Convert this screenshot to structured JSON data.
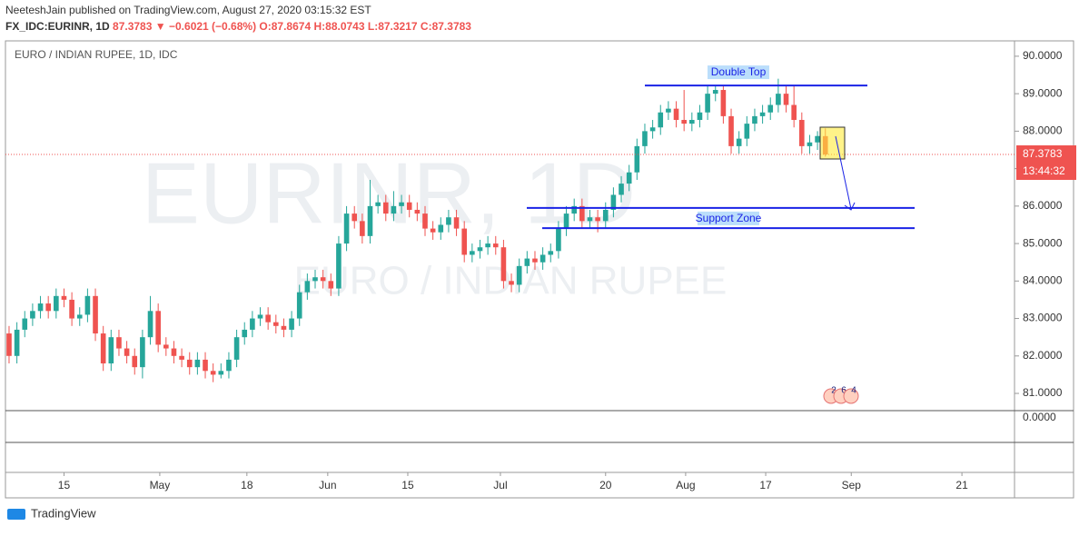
{
  "header": {
    "line1": "NeeteshJain published on TradingView.com, August 27, 2020 03:15:32 EST",
    "symbol": "FX_IDC:EURINR, 1D",
    "price": "87.3783",
    "arrow": "▼",
    "change": "−0.6021 (−0.68%)",
    "open": "O:87.8674",
    "high": "H:88.0743",
    "low": "L:87.3217",
    "close": "C:87.3783"
  },
  "footer": "TradingView",
  "chart_data": {
    "type": "candlestick",
    "title": "EURO / INDIAN RUPEE, 1D, IDC",
    "watermark": [
      "EURINR, 1D",
      "EURO / INDIAN RUPEE"
    ],
    "up_color": "#26a69a",
    "down_color": "#ef5350",
    "open": [
      82.6,
      82.0,
      82.7,
      83.0,
      83.2,
      83.4,
      83.2,
      83.6,
      83.5,
      83.0,
      83.1,
      83.6,
      82.6,
      81.8,
      82.5,
      82.2,
      82.0,
      81.7,
      82.5,
      83.2,
      82.3,
      82.2,
      82.0,
      81.9,
      81.7,
      81.9,
      81.6,
      81.5,
      81.6,
      81.9,
      82.5,
      82.7,
      83.0,
      83.1,
      82.9,
      82.8,
      82.7,
      83.0,
      83.7,
      84.0,
      84.1,
      84.0,
      83.8,
      85.0,
      85.8,
      85.6,
      85.2,
      86.0,
      86.1,
      85.8,
      86.0,
      86.1,
      85.9,
      85.8,
      85.4,
      85.3,
      85.5,
      85.7,
      85.4,
      84.7,
      84.8,
      84.9,
      85.0,
      84.9,
      84.0,
      83.9,
      84.4,
      84.6,
      84.5,
      84.7,
      84.8,
      85.4,
      85.8,
      86.0,
      85.6,
      85.7,
      85.6,
      85.9,
      86.3,
      86.6,
      86.9,
      87.6,
      88.0,
      88.1,
      88.5,
      88.6,
      88.3,
      88.2,
      88.3,
      88.5,
      89.0,
      89.1,
      88.4,
      87.6,
      87.8,
      88.2,
      88.4,
      88.5,
      88.7,
      89.0,
      88.7,
      88.3,
      87.6,
      87.7,
      87.8674
    ],
    "high": [
      82.8,
      82.9,
      83.2,
      83.4,
      83.6,
      83.6,
      83.8,
      83.8,
      83.7,
      83.3,
      83.8,
      83.8,
      82.8,
      82.7,
      82.7,
      82.4,
      82.2,
      82.7,
      83.6,
      83.4,
      82.5,
      82.4,
      82.2,
      82.1,
      82.1,
      82.1,
      81.8,
      81.8,
      82.1,
      82.7,
      82.9,
      83.2,
      83.3,
      83.3,
      83.1,
      83.0,
      83.2,
      83.9,
      84.2,
      84.3,
      84.3,
      84.2,
      85.2,
      86.0,
      86.0,
      85.8,
      86.7,
      86.3,
      86.3,
      86.4,
      86.3,
      86.3,
      86.1,
      86.0,
      85.6,
      85.7,
      85.9,
      85.9,
      85.6,
      85.0,
      85.1,
      85.2,
      85.2,
      85.1,
      84.2,
      84.6,
      84.8,
      84.8,
      84.9,
      85.0,
      85.6,
      86.0,
      86.2,
      86.2,
      85.9,
      85.9,
      86.1,
      86.5,
      86.8,
      87.1,
      87.8,
      88.2,
      88.3,
      88.7,
      88.8,
      88.8,
      89.1,
      88.5,
      88.7,
      89.2,
      89.2,
      89.2,
      88.6,
      88.0,
      88.4,
      88.6,
      88.7,
      88.9,
      89.4,
      89.2,
      89.2,
      88.5,
      87.9,
      88.0,
      88.0743
    ],
    "low": [
      81.8,
      81.8,
      82.5,
      82.8,
      83.0,
      83.0,
      83.0,
      83.3,
      82.8,
      82.8,
      82.9,
      82.4,
      81.6,
      81.6,
      82.0,
      81.8,
      81.5,
      81.4,
      82.3,
      82.1,
      82.0,
      81.8,
      81.7,
      81.5,
      81.5,
      81.4,
      81.3,
      81.4,
      81.4,
      81.7,
      82.3,
      82.5,
      82.8,
      82.7,
      82.6,
      82.5,
      82.5,
      82.8,
      83.5,
      83.8,
      83.8,
      83.6,
      83.6,
      84.8,
      85.4,
      85.0,
      85.0,
      85.8,
      85.6,
      85.6,
      85.8,
      85.7,
      85.6,
      85.2,
      85.1,
      85.1,
      85.3,
      85.2,
      84.5,
      84.5,
      84.6,
      84.7,
      84.7,
      83.8,
      83.7,
      83.7,
      84.2,
      84.3,
      84.3,
      84.5,
      84.6,
      85.2,
      85.6,
      85.4,
      85.4,
      85.3,
      85.4,
      85.7,
      86.1,
      86.4,
      86.7,
      87.4,
      87.8,
      87.9,
      88.3,
      88.1,
      88.0,
      88.0,
      88.1,
      88.3,
      88.8,
      88.2,
      87.4,
      87.4,
      87.6,
      88.0,
      88.2,
      88.3,
      88.5,
      88.5,
      88.1,
      87.4,
      87.4,
      87.5,
      87.3217
    ],
    "close": [
      82.0,
      82.7,
      83.0,
      83.2,
      83.4,
      83.2,
      83.6,
      83.5,
      83.0,
      83.1,
      83.6,
      82.6,
      81.8,
      82.5,
      82.2,
      82.0,
      81.7,
      82.5,
      83.2,
      82.3,
      82.2,
      82.0,
      81.9,
      81.7,
      81.9,
      81.6,
      81.5,
      81.6,
      81.9,
      82.5,
      82.7,
      83.0,
      83.1,
      82.9,
      82.8,
      82.7,
      83.0,
      83.7,
      84.0,
      84.1,
      84.0,
      83.8,
      85.0,
      85.8,
      85.6,
      85.2,
      86.0,
      86.1,
      85.8,
      86.0,
      86.1,
      85.9,
      85.8,
      85.4,
      85.3,
      85.5,
      85.7,
      85.4,
      84.7,
      84.8,
      84.9,
      85.0,
      84.9,
      84.0,
      83.9,
      84.4,
      84.6,
      84.5,
      84.7,
      84.8,
      85.4,
      85.8,
      86.0,
      85.6,
      85.7,
      85.6,
      85.9,
      86.3,
      86.6,
      86.9,
      87.6,
      88.0,
      88.1,
      88.5,
      88.6,
      88.3,
      88.2,
      88.3,
      88.5,
      89.0,
      89.1,
      88.4,
      87.6,
      87.8,
      88.2,
      88.4,
      88.5,
      88.7,
      89.0,
      88.7,
      88.3,
      87.6,
      87.7,
      87.87,
      87.3783
    ],
    "xlim": [
      -0.46,
      128.1
    ],
    "xticks": [
      {
        "value": 7,
        "label": "15"
      },
      {
        "value": 19.2,
        "label": "May"
      },
      {
        "value": 30.3,
        "label": "18"
      },
      {
        "value": 40.6,
        "label": "Jun"
      },
      {
        "value": 50.8,
        "label": "15"
      },
      {
        "value": 62.6,
        "label": "Jul"
      },
      {
        "value": 76,
        "label": "20"
      },
      {
        "value": 86.2,
        "label": "Aug"
      },
      {
        "value": 96.4,
        "label": "17"
      },
      {
        "value": 107.3,
        "label": "Sep"
      },
      {
        "value": 121.4,
        "label": "21"
      }
    ],
    "ylim": [
      80.54,
      90.41
    ],
    "yticks": [
      {
        "value": 81,
        "label": "81.0000"
      },
      {
        "value": 82,
        "label": "82.0000"
      },
      {
        "value": 83,
        "label": "83.0000"
      },
      {
        "value": 84,
        "label": "84.0000"
      },
      {
        "value": 85,
        "label": "85.0000"
      },
      {
        "value": 86,
        "label": "86.0000"
      },
      {
        "value": 87,
        "label": "87.0000"
      },
      {
        "value": 88,
        "label": "88.0000"
      },
      {
        "value": 89,
        "label": "89.0000"
      },
      {
        "value": 90,
        "label": "90.0000"
      }
    ],
    "last_price": {
      "value": 87.3783,
      "label": "87.3783"
    },
    "countdown": "13:44:32",
    "annotations": [
      {
        "text": "Double Top",
        "levels": [
          89.22
        ]
      },
      {
        "text": "Support Zone",
        "levels": [
          85.95,
          85.41
        ]
      }
    ],
    "indicator_tick": "0.0000",
    "event_badges": [
      "2",
      "6",
      "4"
    ]
  }
}
